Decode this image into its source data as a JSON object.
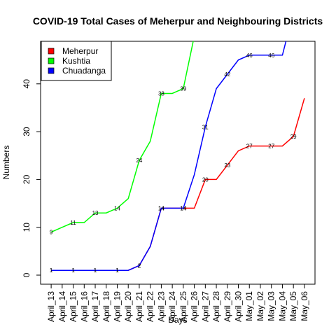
{
  "chart_data": {
    "type": "line",
    "title": "COVID-19 Total Cases of Meherpur and Neighbouring Districts",
    "xlabel": "Days",
    "ylabel": "Numbers",
    "categories": [
      "April_13",
      "April_14",
      "April_15",
      "April_16",
      "April_17",
      "April_18",
      "April_19",
      "April_20",
      "April_21",
      "April_22",
      "April_23",
      "April_24",
      "April_25",
      "April_26",
      "April_27",
      "April_28",
      "April_29",
      "April_30",
      "May_01",
      "May_02",
      "May_03",
      "May_04",
      "May_05",
      "May_06"
    ],
    "series": [
      {
        "name": "Meherpur",
        "color": "#ff0000",
        "values": [
          1,
          1,
          1,
          1,
          1,
          1,
          1,
          1,
          2,
          6,
          14,
          14,
          14,
          14,
          20,
          20,
          23,
          26,
          27,
          27,
          27,
          27,
          29,
          37
        ]
      },
      {
        "name": "Kushtia",
        "color": "#00ff00",
        "values": [
          9,
          10,
          11,
          11,
          13,
          13,
          14,
          16,
          24,
          28,
          38,
          38,
          39,
          50,
          null,
          null,
          null,
          null,
          null,
          null,
          null,
          null,
          null,
          null
        ]
      },
      {
        "name": "Chuadanga",
        "color": "#0000ff",
        "values": [
          1,
          1,
          1,
          1,
          1,
          1,
          1,
          1,
          2,
          6,
          14,
          14,
          14,
          21,
          31,
          39,
          42,
          45,
          46,
          46,
          46,
          46,
          55,
          null
        ]
      }
    ],
    "ylim": [
      -1.9,
      48.9
    ],
    "yticks": [
      0,
      10,
      20,
      30,
      40
    ],
    "legend": "top-left"
  }
}
